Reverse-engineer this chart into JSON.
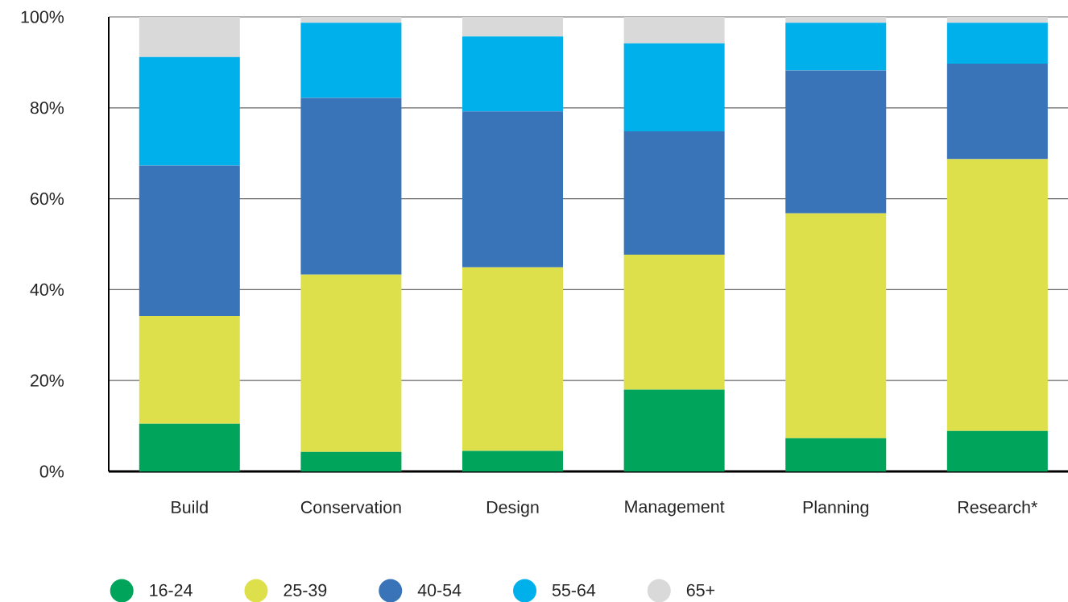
{
  "chart_data": {
    "type": "bar",
    "stacked": true,
    "categories": [
      "Build",
      "Conservation",
      "Design",
      "Management",
      "Planning",
      "Research*"
    ],
    "series": [
      {
        "name": "16-24",
        "color": "#00a45a",
        "values": [
          10.5,
          4.3,
          4.5,
          18.0,
          7.3,
          8.9
        ]
      },
      {
        "name": "25-39",
        "color": "#dee04b",
        "values": [
          23.7,
          39.0,
          40.4,
          29.7,
          49.5,
          59.8
        ]
      },
      {
        "name": "40-54",
        "color": "#3a74b8",
        "values": [
          33.1,
          38.9,
          34.3,
          27.1,
          31.4,
          21.0
        ]
      },
      {
        "name": "55-64",
        "color": "#00b0ea",
        "values": [
          23.9,
          16.5,
          16.5,
          19.4,
          10.5,
          9.0
        ]
      },
      {
        "name": "65+",
        "color": "#d9d9d9",
        "values": [
          8.8,
          1.3,
          4.3,
          5.8,
          1.3,
          1.3
        ]
      }
    ],
    "ylim": [
      0,
      100
    ],
    "yticks": [
      {
        "value": 0,
        "label": "0%"
      },
      {
        "value": 20,
        "label": "20%"
      },
      {
        "value": 40,
        "label": "40%"
      },
      {
        "value": 60,
        "label": "60%"
      },
      {
        "value": 80,
        "label": "80%"
      },
      {
        "value": 100,
        "label": "100%"
      }
    ],
    "grid": "y",
    "legend": "bottom"
  }
}
